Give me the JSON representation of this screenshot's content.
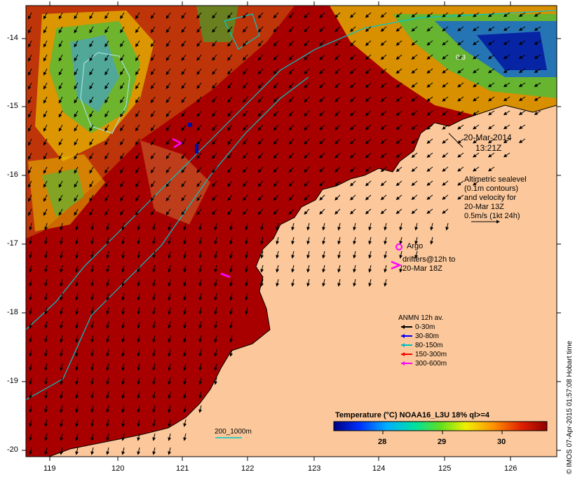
{
  "timestamp": {
    "line1": "20-Mar-2014",
    "line2": "13:21Z"
  },
  "altimetry_note": [
    "Altimetric sealevel",
    "(0.1m contours)",
    "and velocity for",
    "20-Mar 13Z",
    "0.5m/s (1kt 24h)"
  ],
  "argo_label": "Argo",
  "drifters_label": [
    "drifters@12h to",
    "20-Mar 18Z"
  ],
  "anmn": {
    "title": "ANMN 12h av.",
    "items": [
      {
        "label": "0-30m",
        "color": "#000000"
      },
      {
        "label": "30-80m",
        "color": "#0000ff"
      },
      {
        "label": "80-150m",
        "color": "#00c0c0"
      },
      {
        "label": "150-300m",
        "color": "#ff0000"
      },
      {
        "label": "300-600m",
        "color": "#ff00ff"
      }
    ]
  },
  "colorbar": {
    "title": "Temperature (°C) NOAA16_L3U 18% ql>=4",
    "ticks": [
      "28",
      "29",
      "30"
    ]
  },
  "scale_label": "200_1000m",
  "contour_label": "0.3",
  "credit": "© IMOS 07-Apr-2015 01:57:08 Hobart time",
  "axes": {
    "y_ticks": [
      "-14",
      "-15",
      "-16",
      "-17",
      "-18",
      "-19",
      "-20"
    ],
    "x_ticks": [
      "119",
      "120",
      "121",
      "122",
      "123",
      "124",
      "125",
      "126"
    ]
  },
  "colors": {
    "ocean_warm": "#a80000",
    "land": "#fcc89b",
    "contour": "#00c8c8"
  }
}
